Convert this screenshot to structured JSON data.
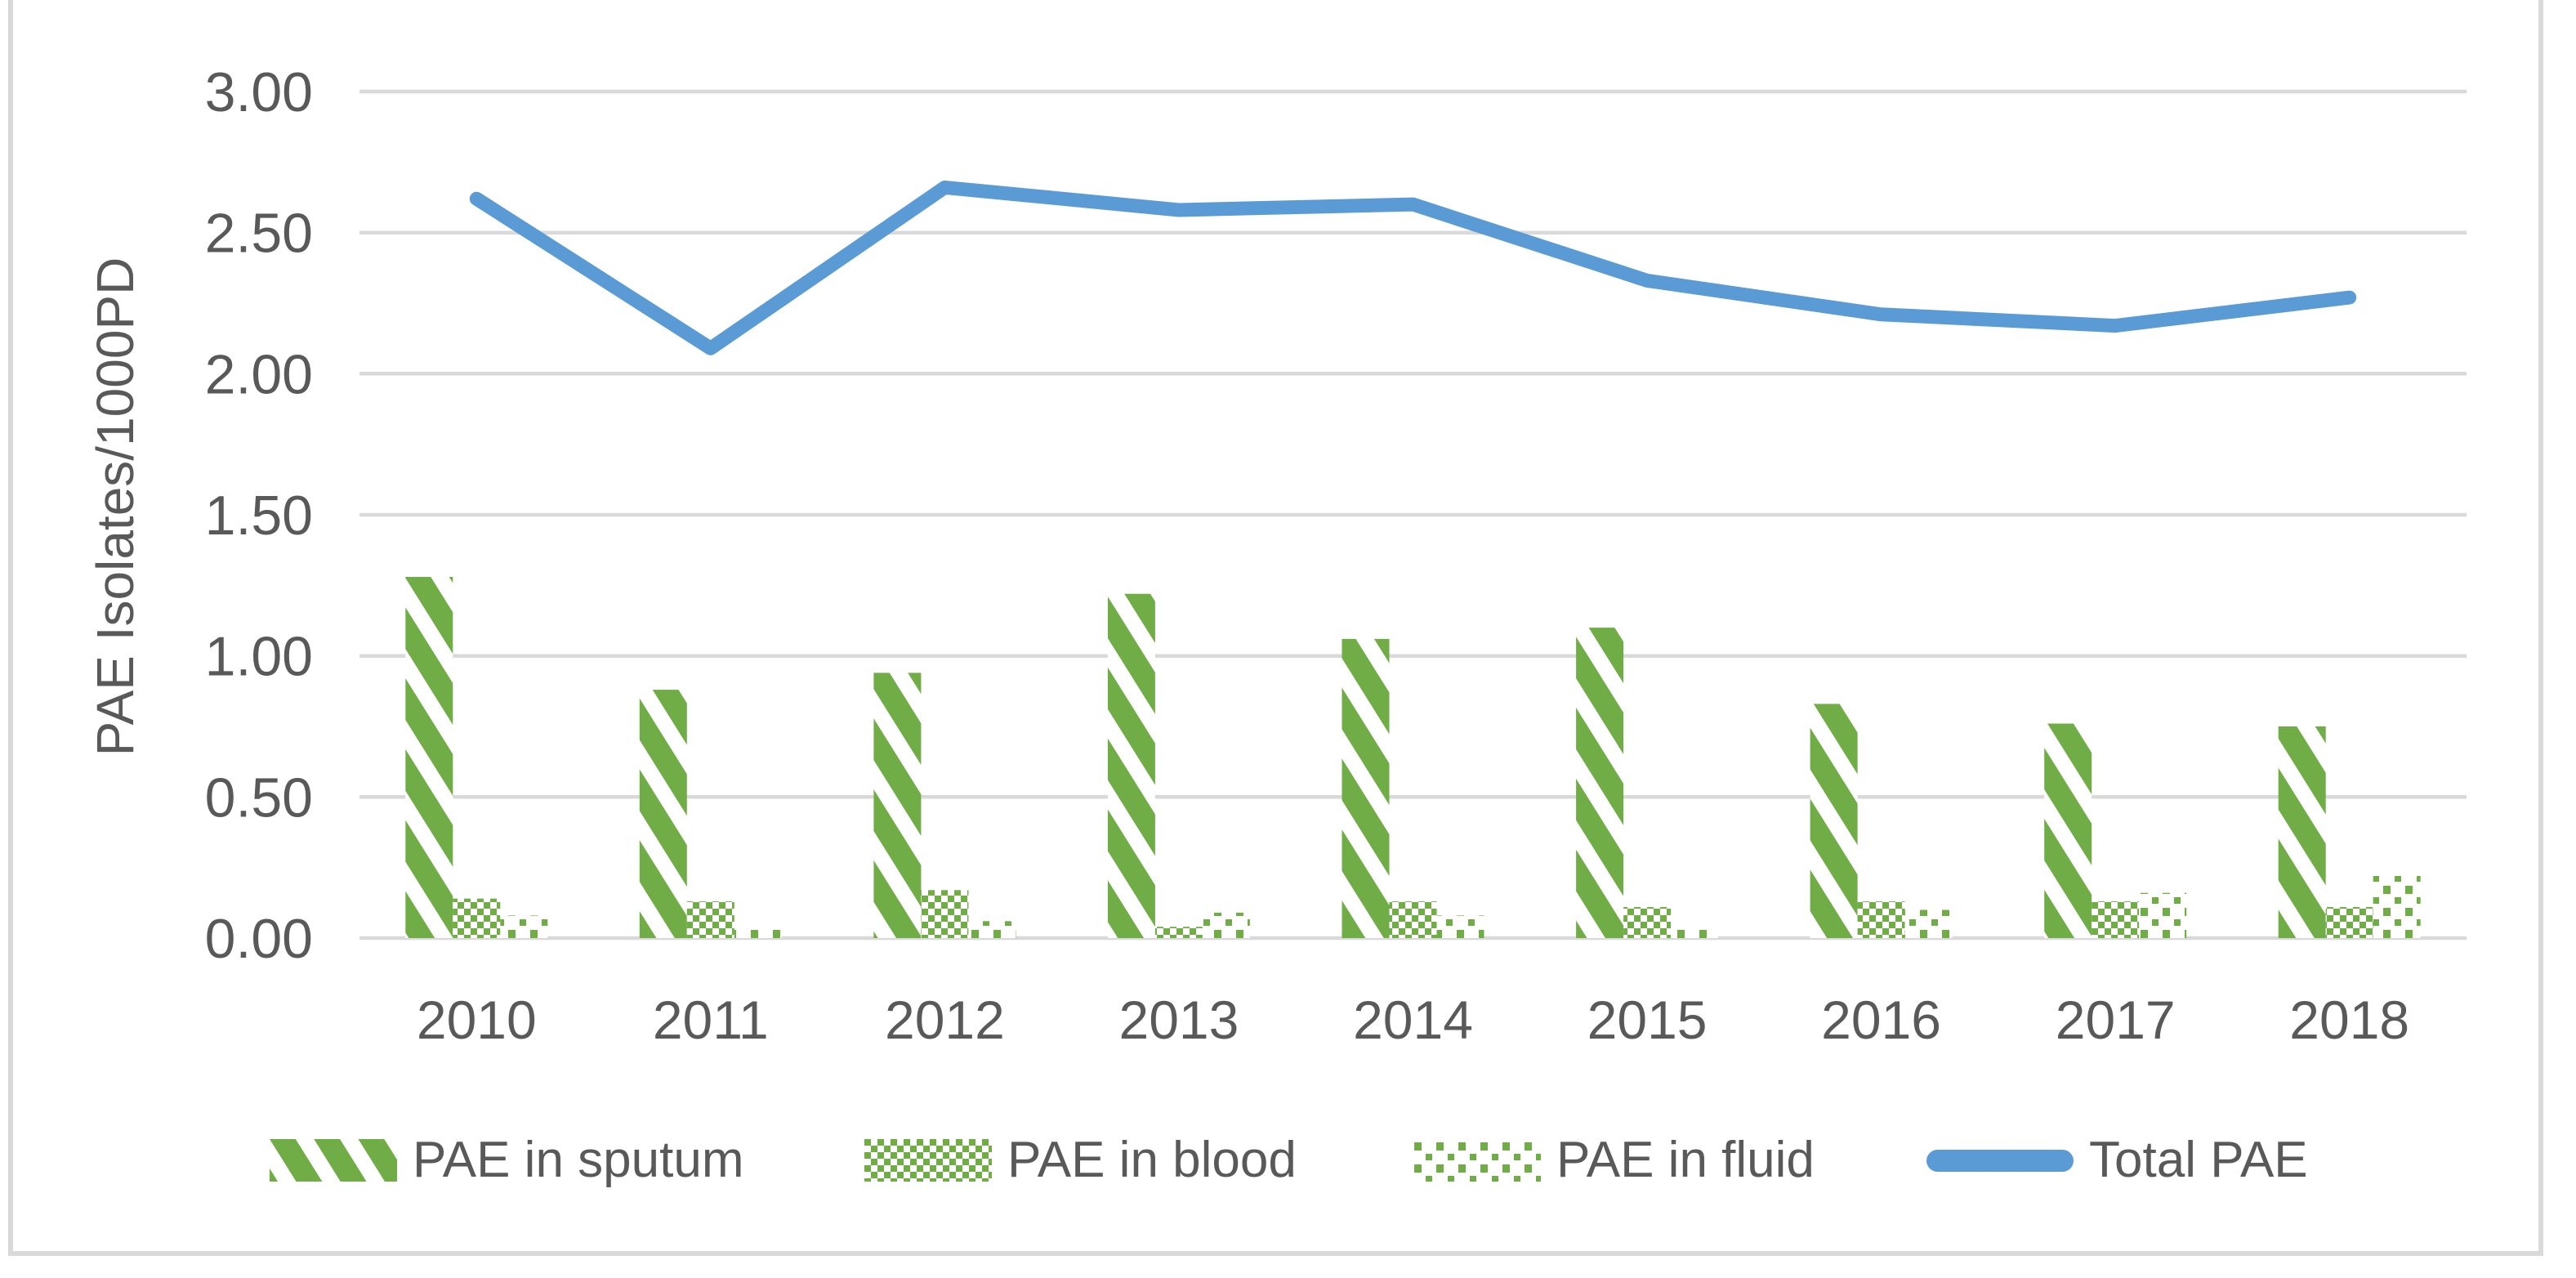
{
  "frame": {
    "background": "#ffffff",
    "border_color": "#d9d9d9"
  },
  "chart_data": {
    "type": "combo-bar-line",
    "title": "",
    "xlabel": "",
    "ylabel": "PAE Isolates/1000PD",
    "categories": [
      "2010",
      "2011",
      "2012",
      "2013",
      "2014",
      "2015",
      "2016",
      "2017",
      "2018"
    ],
    "ylim": [
      0,
      3
    ],
    "ytick_labels": [
      "0.00",
      "0.50",
      "1.00",
      "1.50",
      "2.00",
      "2.50",
      "3.00"
    ],
    "grid": true,
    "grid_color": "#d9d9d9",
    "text_color": "#595959",
    "legend_position": "bottom",
    "series": [
      {
        "name": "PAE in sputum",
        "key": "pae-in-sputum",
        "type": "bar",
        "pattern": "diagonal-stripes",
        "color": "#70ad47",
        "values": [
          1.28,
          0.88,
          0.94,
          1.22,
          1.06,
          1.1,
          0.83,
          0.76,
          0.75
        ]
      },
      {
        "name": "PAE in blood",
        "key": "pae-in-blood",
        "type": "bar",
        "pattern": "checkerboard",
        "color": "#70ad47",
        "values": [
          0.14,
          0.13,
          0.17,
          0.04,
          0.13,
          0.11,
          0.13,
          0.13,
          0.11
        ]
      },
      {
        "name": "PAE in fluid",
        "key": "pae-in-fluid",
        "type": "bar",
        "pattern": "sparse-dots",
        "color": "#70ad47",
        "values": [
          0.08,
          0.03,
          0.06,
          0.09,
          0.08,
          0.04,
          0.1,
          0.16,
          0.22
        ]
      },
      {
        "name": "Total PAE",
        "key": "total-pae",
        "type": "line",
        "color": "#5b9bd5",
        "values": [
          2.62,
          2.09,
          2.66,
          2.58,
          2.6,
          2.33,
          2.21,
          2.17,
          2.27
        ]
      }
    ]
  }
}
